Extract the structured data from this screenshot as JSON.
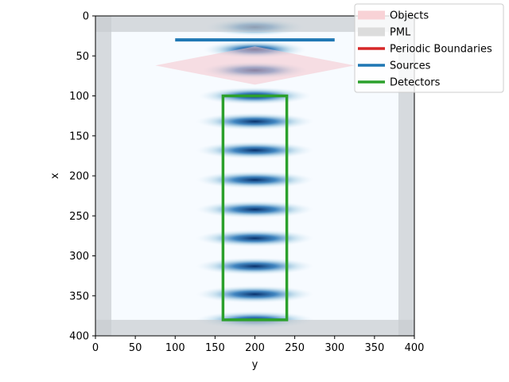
{
  "chart_data": {
    "type": "heatmap",
    "xlabel": "y",
    "ylabel": "x",
    "xlim": [
      0,
      400
    ],
    "ylim": [
      400,
      0
    ],
    "x_ticks": [
      0,
      50,
      100,
      150,
      200,
      250,
      300,
      350,
      400
    ],
    "y_ticks": [
      0,
      50,
      100,
      150,
      200,
      250,
      300,
      350,
      400
    ],
    "colormap": "Blues",
    "field_peak_rows": [
      14,
      42,
      68,
      100,
      132,
      168,
      205,
      242,
      278,
      313,
      348,
      380
    ],
    "field_center": 200,
    "pml": {
      "thickness": 20,
      "color": "#c8ccd0"
    },
    "object": {
      "shape": "diamond",
      "points": [
        [
          62,
          75
        ],
        [
          38,
          200
        ],
        [
          62,
          325
        ],
        [
          86,
          200
        ]
      ],
      "color": "#f5c4cc"
    },
    "source": {
      "row": 30,
      "y_start": 100,
      "y_end": 300,
      "color": "#1f77b4"
    },
    "detector": {
      "row_start": 100,
      "row_end": 380,
      "y_start": 160,
      "y_end": 240,
      "color": "#2ca02c"
    },
    "legend": {
      "position": "top-right",
      "entries": [
        {
          "label": "Objects",
          "color": "#f8d2d6"
        },
        {
          "label": "PML",
          "color": "#dcdcdc"
        },
        {
          "label": "Periodic Boundaries",
          "color": "#d62728"
        },
        {
          "label": "Sources",
          "color": "#1f77b4"
        },
        {
          "label": "Detectors",
          "color": "#2ca02c"
        }
      ]
    }
  }
}
